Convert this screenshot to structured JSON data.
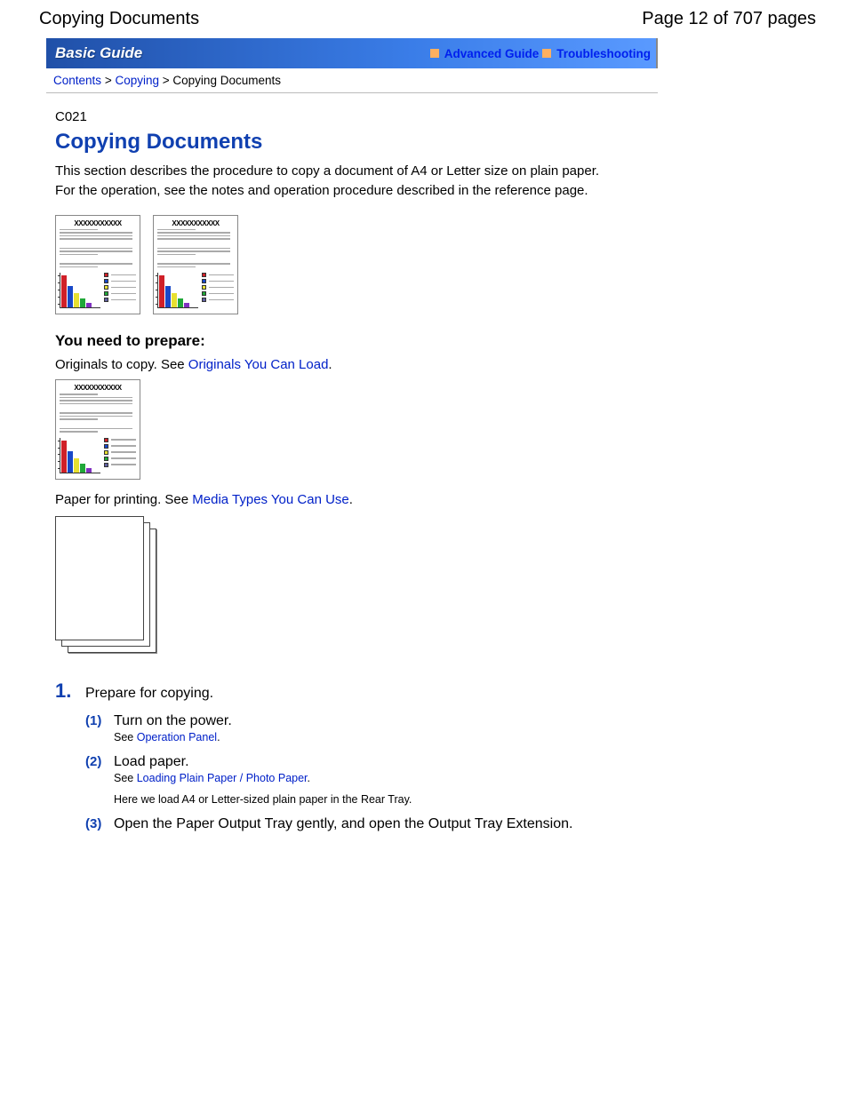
{
  "header": {
    "doc_title": "Copying Documents",
    "page_info": "Page 12 of 707 pages"
  },
  "guide_bar": {
    "title": "Basic Guide",
    "links": {
      "advanced": "Advanced Guide",
      "trouble": "Troubleshooting"
    }
  },
  "breadcrumb": {
    "root": "Contents",
    "mid": "Copying",
    "leaf": "Copying Documents",
    "sep": ">"
  },
  "page": {
    "code": "C021",
    "heading": "Copying Documents",
    "intro1": "This section describes the procedure to copy a document of A4 or Letter size on plain paper.",
    "intro2": "For the operation, see the notes and operation procedure described in the reference page."
  },
  "doc_card": {
    "title_text": "XXXXXXXXXXX",
    "chart": {
      "type": "bar",
      "bars": [
        {
          "color": "#d02028",
          "h": 36
        },
        {
          "color": "#1848c8",
          "h": 24
        },
        {
          "color": "#e8e030",
          "h": 16
        },
        {
          "color": "#20a838",
          "h": 10
        },
        {
          "color": "#8030c0",
          "h": 5
        }
      ],
      "legend_colors": [
        "#d02028",
        "#1848c8",
        "#e8e030",
        "#20a838",
        "#6060a0"
      ]
    }
  },
  "prepare": {
    "heading": "You need to prepare:",
    "originals_pre": "Originals to copy. See ",
    "originals_link": "Originals You Can Load",
    "paper_pre": "Paper for printing. See ",
    "paper_link": "Media Types You Can Use",
    "dot": "."
  },
  "steps": {
    "s1": {
      "num": "1.",
      "text": "Prepare for copying."
    },
    "sub1": {
      "num": "(1)",
      "title": "Turn on the power.",
      "see_pre": "See ",
      "see_link": "Operation Panel",
      "dot": "."
    },
    "sub2": {
      "num": "(2)",
      "title": "Load paper.",
      "see_pre": "See ",
      "see_link": "Loading Plain Paper / Photo Paper",
      "dot": ".",
      "note": "Here we load A4 or Letter-sized plain paper in the Rear Tray."
    },
    "sub3": {
      "num": "(3)",
      "title": "Open the Paper Output Tray gently, and open the Output Tray Extension."
    }
  },
  "colors": {
    "heading_blue": "#1040b0",
    "link_blue": "#0020c8"
  }
}
